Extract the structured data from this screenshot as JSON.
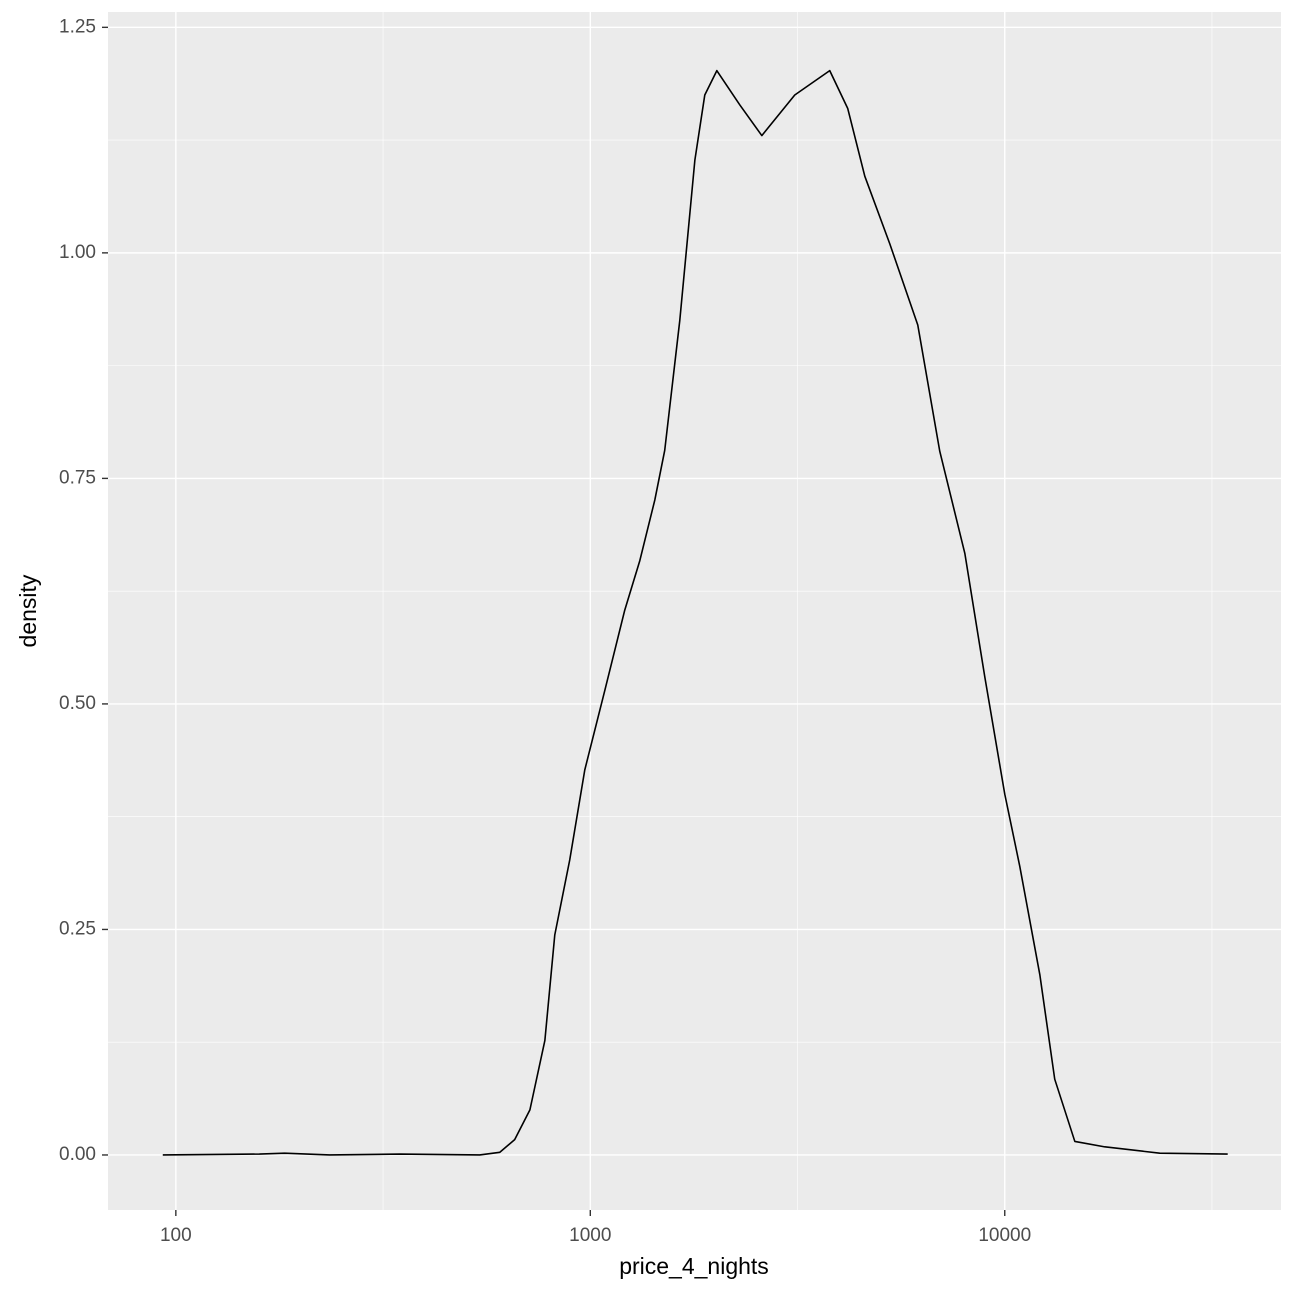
{
  "chart_data": {
    "type": "line",
    "x_label": "price_4_nights",
    "y_label": "density",
    "x": [
      93,
      159,
      183,
      235,
      347,
      541,
      605,
      657,
      715,
      777,
      821,
      892,
      970,
      1084,
      1211,
      1317,
      1431,
      1512,
      1644,
      1788,
      1889,
      2020,
      2295,
      2593,
      3114,
      3782,
      4180,
      4595,
      5280,
      6168,
      6970,
      8010,
      8950,
      10000,
      10870,
      12150,
      13200,
      14760,
      17430,
      23660,
      34510
    ],
    "values": [
      0,
      0.001,
      0.002,
      0,
      0.001,
      0,
      0.003,
      0.017,
      0.05,
      0.127,
      0.244,
      0.327,
      0.427,
      0.515,
      0.604,
      0.659,
      0.726,
      0.781,
      0.925,
      1.103,
      1.175,
      1.202,
      1.164,
      1.13,
      1.175,
      1.202,
      1.16,
      1.085,
      1.01,
      0.92,
      0.78,
      0.667,
      0.53,
      0.4,
      0.32,
      0.2,
      0.084,
      0.015,
      0.009,
      0.002,
      0.001
    ],
    "color": "#000000",
    "x_log": true,
    "xlim": [
      68.6,
      46400
    ],
    "xticks": [
      100,
      1000,
      10000
    ],
    "x_minor_ticks": [
      316.2,
      3162,
      31620
    ],
    "ylim": [
      -0.061,
      1.267
    ],
    "yticks": [
      {
        "value": 0,
        "label": "0.00"
      },
      {
        "value": 0.25,
        "label": "0.25"
      },
      {
        "value": 0.5,
        "label": "0.50"
      },
      {
        "value": 0.75,
        "label": "0.75"
      },
      {
        "value": 1,
        "label": "1.00"
      },
      {
        "value": 1.25,
        "label": "1.25"
      }
    ],
    "y_minor_ticks": [
      0.125,
      0.375,
      0.625,
      0.875,
      1.125
    ],
    "grid": true
  }
}
